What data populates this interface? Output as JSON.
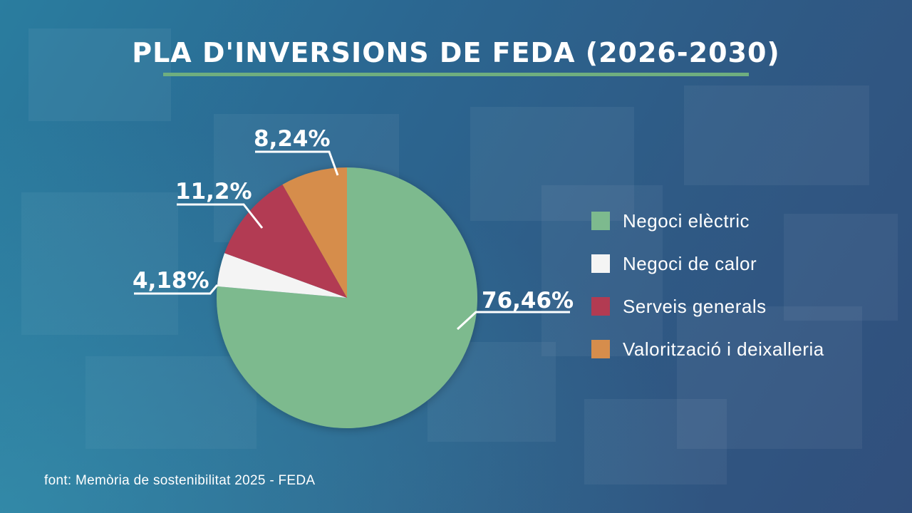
{
  "title": "PLA D'INVERSIONS DE FEDA (2026-2030)",
  "source": "font: Memòria de sostenibilitat 2025 - FEDA",
  "chart_data": {
    "type": "pie",
    "title": "PLA D'INVERSIONS DE FEDA (2026-2030)",
    "slices": [
      {
        "label": "Negoci elèctric",
        "value": 76.46,
        "display": "76,46%",
        "color": "#7dba8e"
      },
      {
        "label": "Negoci de calor",
        "value": 4.18,
        "display": "4,18%",
        "color": "#f4f4f4"
      },
      {
        "label": "Serveis generals",
        "value": 11.2,
        "display": "11,2%",
        "color": "#b23b52"
      },
      {
        "label": "Valorització i deixalleria",
        "value": 8.24,
        "display": "8,24%",
        "color": "#d68d4c"
      }
    ],
    "legend_position": "right"
  }
}
